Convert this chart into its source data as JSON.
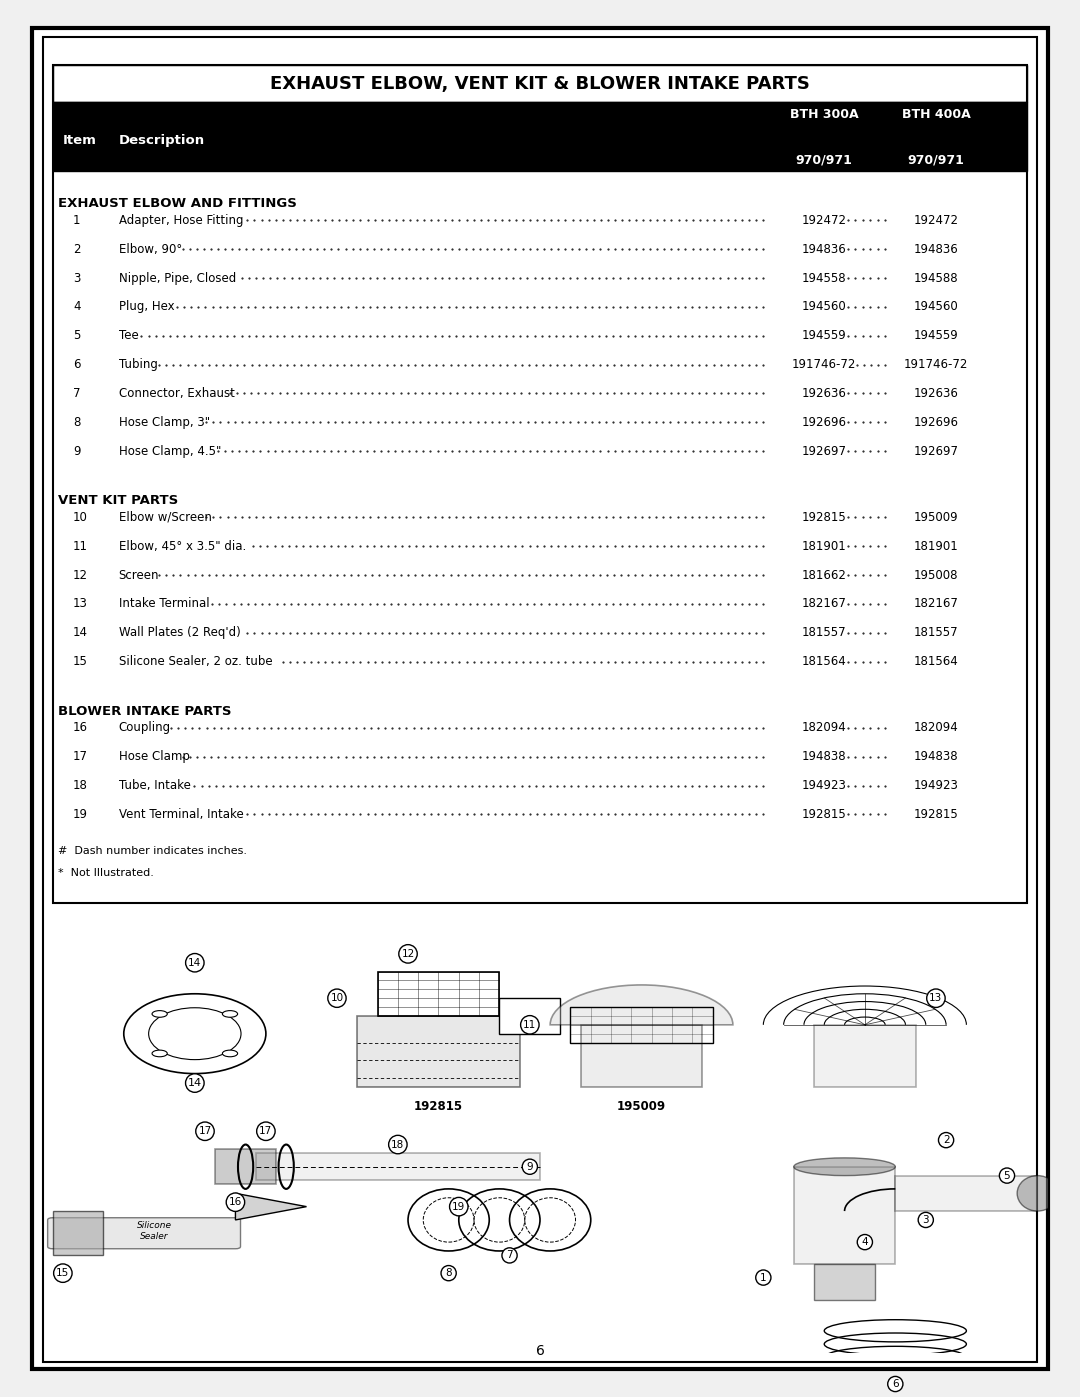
{
  "title": "EXHAUST ELBOW, VENT KIT & BLOWER INTAKE PARTS",
  "col_headers": [
    "Item",
    "Description",
    "BTH 300A\n970/971",
    "BTH 400A\n970/971"
  ],
  "col_headers_line1": [
    "",
    "",
    "BTH 300A",
    "BTH 400A"
  ],
  "col_headers_line2": [
    "Item",
    "Description",
    "970/971",
    "970/971"
  ],
  "sections": [
    {
      "name": "EXHAUST ELBOW AND FITTINGS",
      "rows": [
        [
          "1",
          "Adapter, Hose Fitting",
          "192472",
          "192472"
        ],
        [
          "2",
          "Elbow, 90°",
          "194836",
          "194836"
        ],
        [
          "3",
          "Nipple, Pipe, Closed",
          "194558",
          "194588"
        ],
        [
          "4",
          "Plug, Hex",
          "194560",
          "194560"
        ],
        [
          "5",
          "Tee",
          "194559",
          "194559"
        ],
        [
          "6",
          "Tubing",
          "191746-72",
          "191746-72"
        ],
        [
          "7",
          "Connector, Exhaust",
          "192636",
          "192636"
        ],
        [
          "8",
          "Hose Clamp, 3\"",
          "192696",
          "192696"
        ],
        [
          "9",
          "Hose Clamp, 4.5\"",
          "192697",
          "192697"
        ]
      ]
    },
    {
      "name": "VENT KIT PARTS",
      "rows": [
        [
          "10",
          "Elbow w/Screen",
          "192815",
          "195009"
        ],
        [
          "11",
          "Elbow, 45° x 3.5\" dia.",
          "181901",
          "181901"
        ],
        [
          "12",
          "Screen",
          "181662",
          "195008"
        ],
        [
          "13",
          "Intake Terminal",
          "182167",
          "182167"
        ],
        [
          "14",
          "Wall Plates (2 Req'd)",
          "181557",
          "181557"
        ],
        [
          "15",
          "Silicone Sealer, 2 oz. tube",
          "181564",
          "181564"
        ]
      ]
    },
    {
      "name": "BLOWER INTAKE PARTS",
      "rows": [
        [
          "16",
          "Coupling",
          "182094",
          "182094"
        ],
        [
          "17",
          "Hose Clamp",
          "194838",
          "194838"
        ],
        [
          "18",
          "Tube, Intake",
          "194923",
          "194923"
        ],
        [
          "19",
          "Vent Terminal, Intake",
          "192815",
          "192815"
        ]
      ]
    }
  ],
  "footnotes": [
    "#  Dash number indicates inches.",
    "*  Not Illustrated."
  ],
  "page_number": "6",
  "bg_color": "#ffffff",
  "border_color": "#000000",
  "header_bg": "#000000",
  "header_fg": "#ffffff",
  "section_header_bg": "#ffffff",
  "image_path": null
}
